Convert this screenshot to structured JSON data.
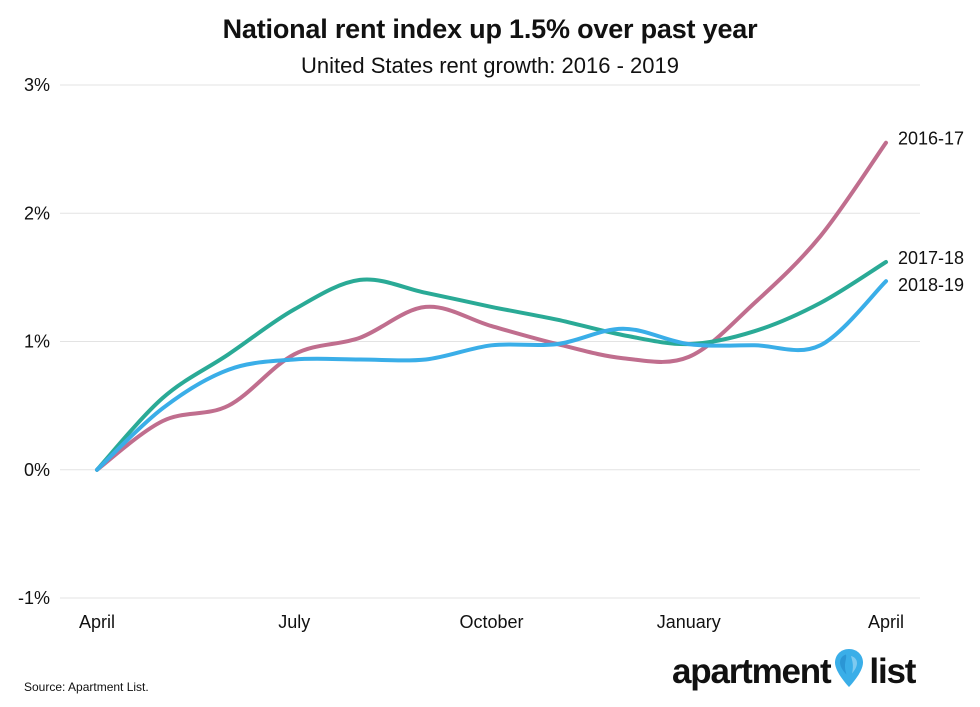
{
  "title": "National rent index up 1.5% over past year",
  "subtitle": "United States rent growth: 2016 - 2019",
  "source": "Source: Apartment List.",
  "logo": {
    "word1": "apartment",
    "word2": "list",
    "pin_color": "#3aaee8"
  },
  "chart_data": {
    "type": "line",
    "title": "National rent index up 1.5% over past year",
    "subtitle": "United States rent growth: 2016 - 2019",
    "xlabel": "",
    "ylabel": "",
    "x": [
      0,
      1,
      2,
      3,
      4,
      5,
      6,
      7,
      8,
      9,
      10,
      11,
      12
    ],
    "x_ticks": [
      {
        "x": 0,
        "label": "April"
      },
      {
        "x": 3,
        "label": "July"
      },
      {
        "x": 6,
        "label": "October"
      },
      {
        "x": 9,
        "label": "January"
      },
      {
        "x": 12,
        "label": "April"
      }
    ],
    "y_ticks": [
      {
        "value": -1,
        "label": "-1%"
      },
      {
        "value": 0,
        "label": "0%"
      },
      {
        "value": 1,
        "label": "1%"
      },
      {
        "value": 2,
        "label": "2%"
      },
      {
        "value": 3,
        "label": "3%"
      }
    ],
    "ylim": [
      -1,
      3
    ],
    "grid": "horizontal",
    "series": [
      {
        "name": "2016-17",
        "color": "#c06e8e",
        "values": [
          0,
          0.38,
          0.5,
          0.9,
          1.03,
          1.27,
          1.12,
          0.98,
          0.87,
          0.88,
          1.3,
          1.82,
          2.55
        ]
      },
      {
        "name": "2017-18",
        "color": "#2aaa96",
        "values": [
          0,
          0.56,
          0.9,
          1.25,
          1.48,
          1.38,
          1.27,
          1.17,
          1.05,
          0.98,
          1.08,
          1.3,
          1.62
        ]
      },
      {
        "name": "2018-19",
        "color": "#3aaee8",
        "values": [
          0,
          0.48,
          0.78,
          0.86,
          0.86,
          0.86,
          0.97,
          0.98,
          1.1,
          0.98,
          0.97,
          0.97,
          1.47
        ]
      }
    ]
  }
}
